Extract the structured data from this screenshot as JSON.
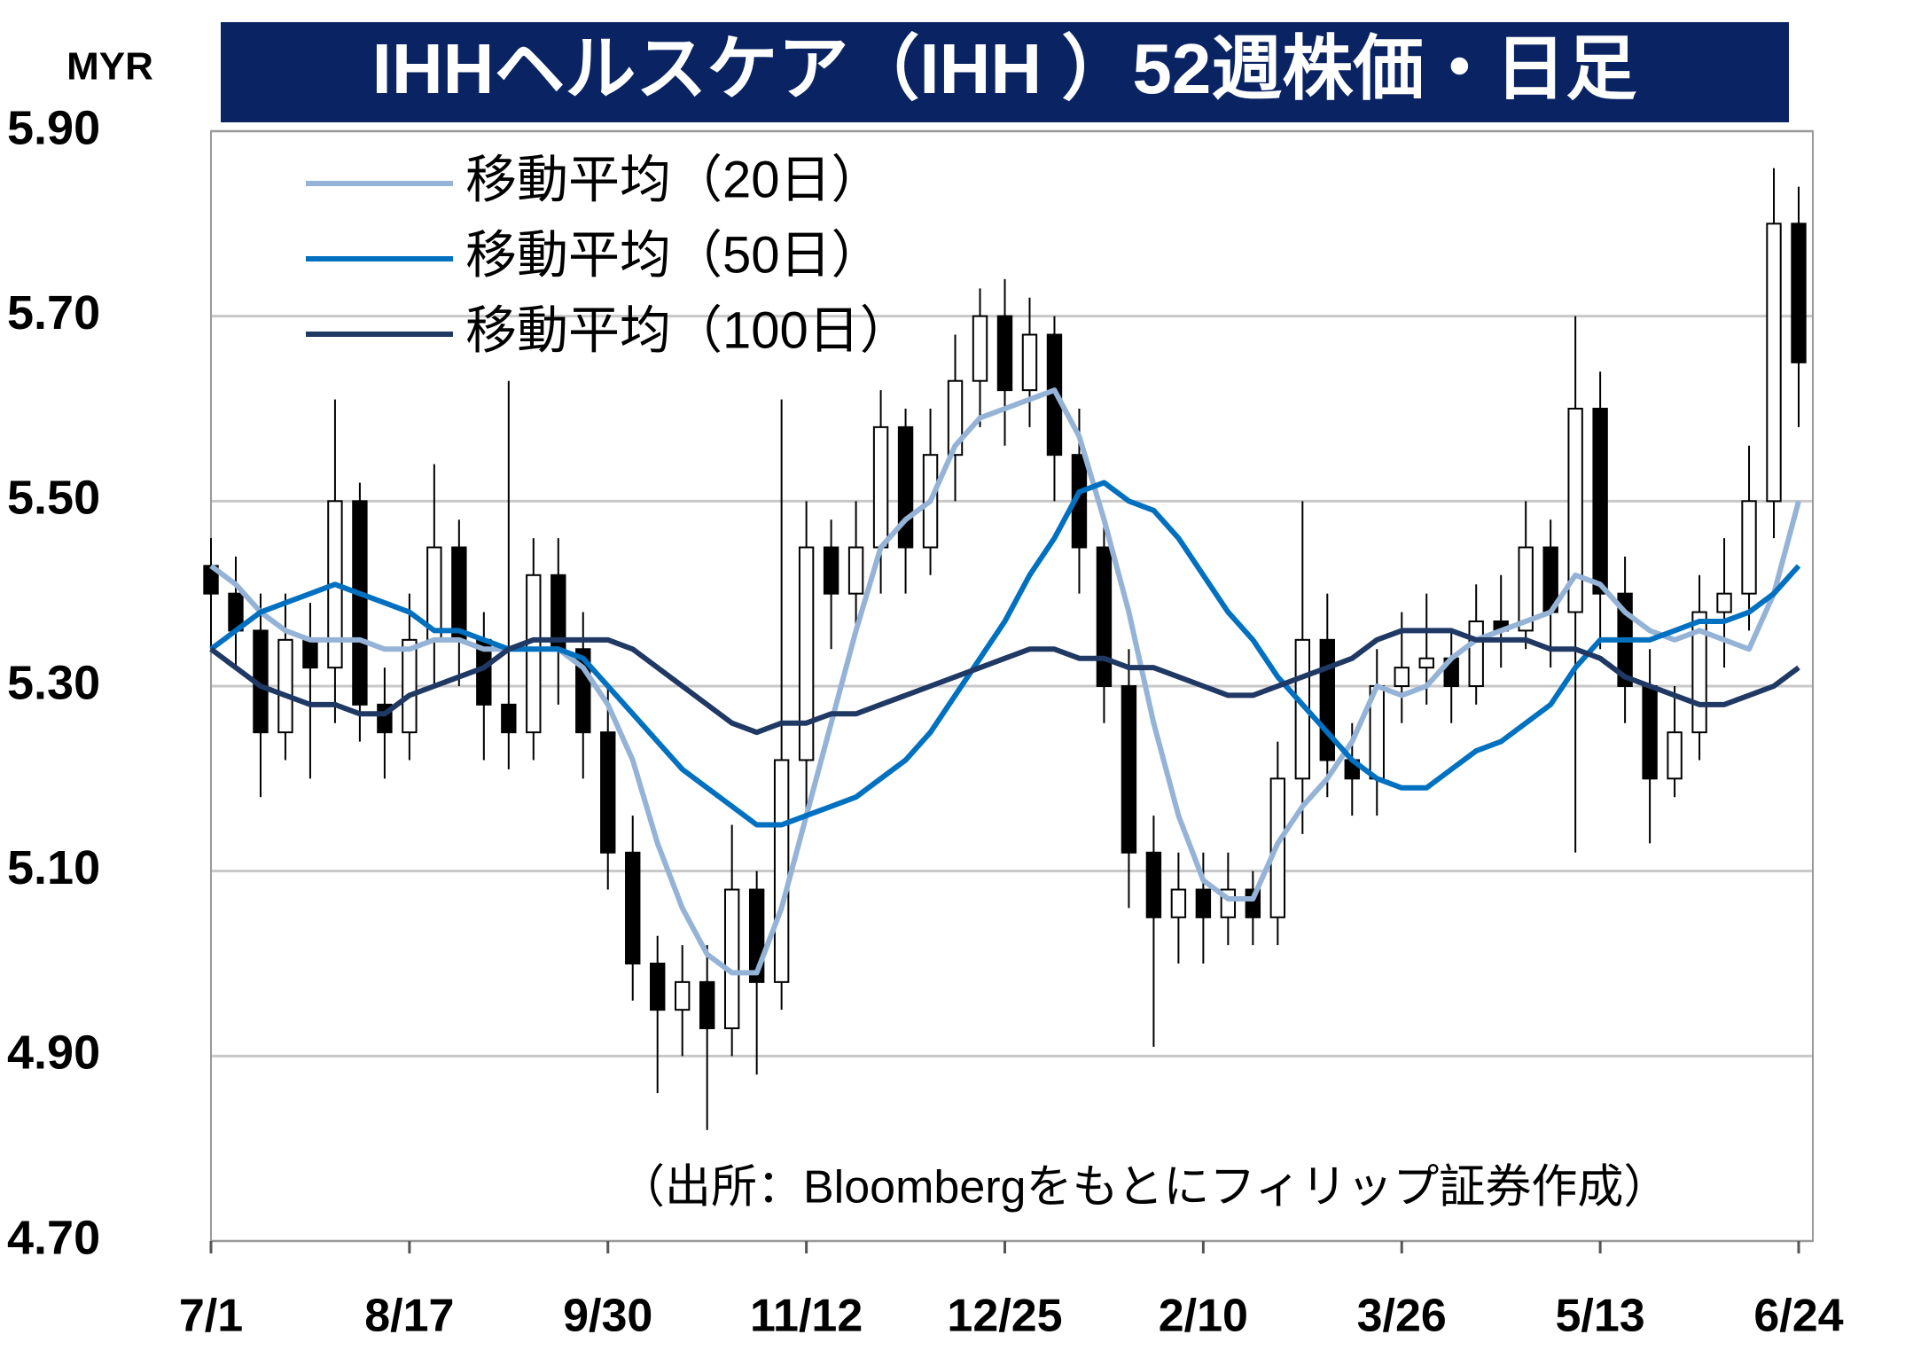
{
  "chart_data": {
    "type": "candlestick",
    "title": "IHHヘルスケア（IHH ）52週株価・日足",
    "y_label": "MYR",
    "note": "（出所：Bloombergをもとにフィリップ証券作成）",
    "x": [
      0,
      4,
      8,
      12,
      16,
      20,
      24,
      28,
      32,
      36,
      40,
      44,
      48,
      52,
      56,
      60,
      64,
      68,
      72,
      76,
      80,
      84,
      88,
      92,
      96,
      100,
      104,
      108,
      112,
      116,
      120,
      124,
      128,
      132,
      136,
      140,
      144,
      148,
      152,
      156,
      160,
      164,
      168,
      172,
      176,
      180,
      184,
      188,
      192,
      196,
      200,
      204,
      208,
      212,
      216,
      220,
      224,
      228,
      232,
      236,
      240,
      244,
      248,
      252,
      256
    ],
    "open": [
      5.43,
      5.4,
      5.36,
      5.25,
      5.35,
      5.32,
      5.5,
      5.28,
      5.25,
      5.35,
      5.45,
      5.35,
      5.28,
      5.25,
      5.42,
      5.34,
      5.25,
      5.12,
      5.0,
      4.95,
      4.98,
      4.93,
      5.08,
      4.98,
      5.22,
      5.45,
      5.4,
      5.45,
      5.58,
      5.45,
      5.55,
      5.63,
      5.7,
      5.62,
      5.68,
      5.55,
      5.45,
      5.3,
      5.12,
      5.05,
      5.08,
      5.05,
      5.08,
      5.05,
      5.2,
      5.35,
      5.22,
      5.2,
      5.3,
      5.32,
      5.33,
      5.3,
      5.37,
      5.36,
      5.45,
      5.38,
      5.6,
      5.4,
      5.3,
      5.2,
      5.25,
      5.38,
      5.4,
      5.5,
      5.8
    ],
    "high": [
      5.46,
      5.44,
      5.4,
      5.4,
      5.39,
      5.61,
      5.52,
      5.32,
      5.4,
      5.54,
      5.48,
      5.38,
      5.63,
      5.46,
      5.46,
      5.38,
      5.3,
      5.16,
      5.03,
      5.02,
      5.02,
      5.15,
      5.1,
      5.61,
      5.5,
      5.48,
      5.5,
      5.62,
      5.6,
      5.6,
      5.68,
      5.73,
      5.74,
      5.72,
      5.7,
      5.6,
      5.48,
      5.34,
      5.16,
      5.12,
      5.12,
      5.12,
      5.1,
      5.24,
      5.5,
      5.4,
      5.26,
      5.34,
      5.38,
      5.4,
      5.36,
      5.41,
      5.42,
      5.5,
      5.48,
      5.7,
      5.64,
      5.44,
      5.34,
      5.3,
      5.42,
      5.46,
      5.56,
      5.86,
      5.84
    ],
    "low": [
      5.34,
      5.32,
      5.18,
      5.22,
      5.2,
      5.26,
      5.24,
      5.2,
      5.22,
      5.3,
      5.3,
      5.22,
      5.21,
      5.22,
      5.28,
      5.2,
      5.08,
      4.96,
      4.86,
      4.9,
      4.82,
      4.9,
      4.88,
      4.95,
      5.16,
      5.34,
      5.36,
      5.4,
      5.4,
      5.42,
      5.5,
      5.58,
      5.56,
      5.58,
      5.5,
      5.4,
      5.26,
      5.06,
      4.91,
      5.0,
      5.0,
      5.02,
      5.02,
      5.02,
      5.14,
      5.18,
      5.16,
      5.16,
      5.26,
      5.28,
      5.26,
      5.28,
      5.32,
      5.34,
      5.32,
      5.12,
      5.34,
      5.26,
      5.13,
      5.18,
      5.22,
      5.32,
      5.36,
      5.46,
      5.58
    ],
    "close": [
      5.4,
      5.36,
      5.25,
      5.35,
      5.32,
      5.5,
      5.28,
      5.25,
      5.35,
      5.45,
      5.35,
      5.28,
      5.25,
      5.42,
      5.34,
      5.25,
      5.12,
      5.0,
      4.95,
      4.98,
      4.93,
      5.08,
      4.98,
      5.22,
      5.45,
      5.4,
      5.45,
      5.58,
      5.45,
      5.55,
      5.63,
      5.7,
      5.62,
      5.68,
      5.55,
      5.45,
      5.3,
      5.12,
      5.05,
      5.08,
      5.05,
      5.08,
      5.05,
      5.2,
      5.35,
      5.22,
      5.2,
      5.3,
      5.32,
      5.33,
      5.3,
      5.37,
      5.36,
      5.45,
      5.38,
      5.6,
      5.4,
      5.3,
      5.2,
      5.25,
      5.38,
      5.4,
      5.5,
      5.8,
      5.65
    ],
    "up_color": "#ffffff",
    "down_color": "#000000",
    "candle_outline": "#000000",
    "series": [
      {
        "name": "移動平均（20日）",
        "color": "#95b3d7",
        "values": [
          5.43,
          5.41,
          5.38,
          5.36,
          5.35,
          5.35,
          5.35,
          5.34,
          5.34,
          5.35,
          5.35,
          5.34,
          5.34,
          5.34,
          5.34,
          5.32,
          5.28,
          5.22,
          5.13,
          5.06,
          5.01,
          4.99,
          4.99,
          5.06,
          5.16,
          5.26,
          5.36,
          5.45,
          5.48,
          5.5,
          5.56,
          5.59,
          5.6,
          5.61,
          5.62,
          5.57,
          5.48,
          5.38,
          5.26,
          5.16,
          5.09,
          5.07,
          5.07,
          5.13,
          5.17,
          5.2,
          5.24,
          5.3,
          5.29,
          5.3,
          5.33,
          5.35,
          5.36,
          5.37,
          5.38,
          5.42,
          5.41,
          5.38,
          5.36,
          5.35,
          5.36,
          5.35,
          5.34,
          5.4,
          5.5
        ]
      },
      {
        "name": "移動平均（50日）",
        "color": "#0070c0",
        "values": [
          5.34,
          5.36,
          5.38,
          5.39,
          5.4,
          5.41,
          5.4,
          5.39,
          5.38,
          5.36,
          5.36,
          5.35,
          5.34,
          5.34,
          5.34,
          5.33,
          5.3,
          5.27,
          5.24,
          5.21,
          5.19,
          5.17,
          5.15,
          5.15,
          5.16,
          5.17,
          5.18,
          5.2,
          5.22,
          5.25,
          5.29,
          5.33,
          5.37,
          5.42,
          5.46,
          5.51,
          5.52,
          5.5,
          5.49,
          5.46,
          5.42,
          5.38,
          5.35,
          5.31,
          5.28,
          5.25,
          5.22,
          5.2,
          5.19,
          5.19,
          5.21,
          5.23,
          5.24,
          5.26,
          5.28,
          5.32,
          5.35,
          5.35,
          5.35,
          5.36,
          5.37,
          5.37,
          5.38,
          5.4,
          5.43
        ]
      },
      {
        "name": "移動平均（100日）",
        "color": "#1f3864",
        "values": [
          5.34,
          5.32,
          5.3,
          5.29,
          5.28,
          5.28,
          5.27,
          5.27,
          5.29,
          5.3,
          5.31,
          5.32,
          5.34,
          5.35,
          5.35,
          5.35,
          5.35,
          5.34,
          5.32,
          5.3,
          5.28,
          5.26,
          5.25,
          5.26,
          5.26,
          5.27,
          5.27,
          5.28,
          5.29,
          5.3,
          5.31,
          5.32,
          5.33,
          5.34,
          5.34,
          5.33,
          5.33,
          5.32,
          5.32,
          5.31,
          5.3,
          5.29,
          5.29,
          5.3,
          5.31,
          5.32,
          5.33,
          5.35,
          5.36,
          5.36,
          5.36,
          5.35,
          5.35,
          5.35,
          5.34,
          5.34,
          5.33,
          5.31,
          5.3,
          5.29,
          5.28,
          5.28,
          5.29,
          5.3,
          5.32
        ]
      }
    ],
    "xlim": [
      0,
      256
    ],
    "xticks": [
      {
        "value": 0,
        "label": "7/1"
      },
      {
        "value": 32,
        "label": "8/17"
      },
      {
        "value": 64,
        "label": "9/30"
      },
      {
        "value": 96,
        "label": "11/12"
      },
      {
        "value": 128,
        "label": "12/25"
      },
      {
        "value": 160,
        "label": "2/10"
      },
      {
        "value": 192,
        "label": "3/26"
      },
      {
        "value": 224,
        "label": "5/13"
      },
      {
        "value": 256,
        "label": "6/24"
      }
    ],
    "ylim": [
      4.7,
      5.9
    ],
    "yticks": [
      {
        "value": 4.7,
        "label": "4.70"
      },
      {
        "value": 4.9,
        "label": "4.90"
      },
      {
        "value": 5.1,
        "label": "5.10"
      },
      {
        "value": 5.3,
        "label": "5.30"
      },
      {
        "value": 5.5,
        "label": "5.50"
      },
      {
        "value": 5.7,
        "label": "5.70"
      },
      {
        "value": 5.9,
        "label": "5.90"
      }
    ],
    "grid": true
  }
}
